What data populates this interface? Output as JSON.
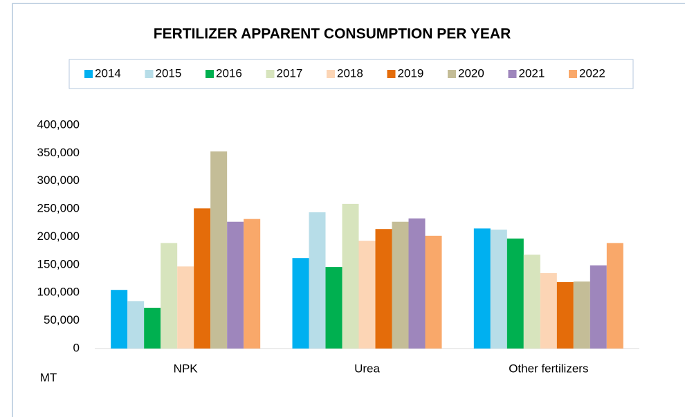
{
  "chart_data": {
    "type": "bar",
    "title": "FERTILIZER APPARENT CONSUMPTION PER YEAR",
    "y_unit": "MT",
    "categories": [
      "NPK",
      "Urea",
      "Other fertilizers"
    ],
    "series": [
      {
        "name": "2014",
        "color": "#00b0f0",
        "values": [
          105000,
          162000,
          215000
        ]
      },
      {
        "name": "2015",
        "color": "#b7dde8",
        "values": [
          85000,
          244000,
          213000
        ]
      },
      {
        "name": "2016",
        "color": "#00b050",
        "values": [
          73000,
          146000,
          197000
        ]
      },
      {
        "name": "2017",
        "color": "#d7e4bd",
        "values": [
          189000,
          259000,
          168000
        ]
      },
      {
        "name": "2018",
        "color": "#fcd5b5",
        "values": [
          147000,
          193000,
          135000
        ]
      },
      {
        "name": "2019",
        "color": "#e46c0a",
        "values": [
          251000,
          214000,
          119000
        ]
      },
      {
        "name": "2020",
        "color": "#c4bd97",
        "values": [
          353000,
          227000,
          120000
        ]
      },
      {
        "name": "2021",
        "color": "#9e86bc",
        "values": [
          227000,
          233000,
          149000
        ]
      },
      {
        "name": "2022",
        "color": "#f9a86a",
        "values": [
          232000,
          202000,
          189000
        ]
      }
    ],
    "ylim": [
      0,
      400000
    ],
    "yticks": [
      0,
      {
        "value": 50000,
        "label": "50,000"
      },
      {
        "value": 100000,
        "label": "100,000"
      },
      {
        "value": 150000,
        "label": "150,000"
      },
      {
        "value": 200000,
        "label": "200,000"
      },
      {
        "value": 250000,
        "label": "250,000"
      },
      {
        "value": 300000,
        "label": "300,000"
      },
      {
        "value": 350000,
        "label": "350,000"
      },
      {
        "value": 400000,
        "label": "400,000"
      }
    ],
    "grid": false,
    "legend": "top"
  }
}
